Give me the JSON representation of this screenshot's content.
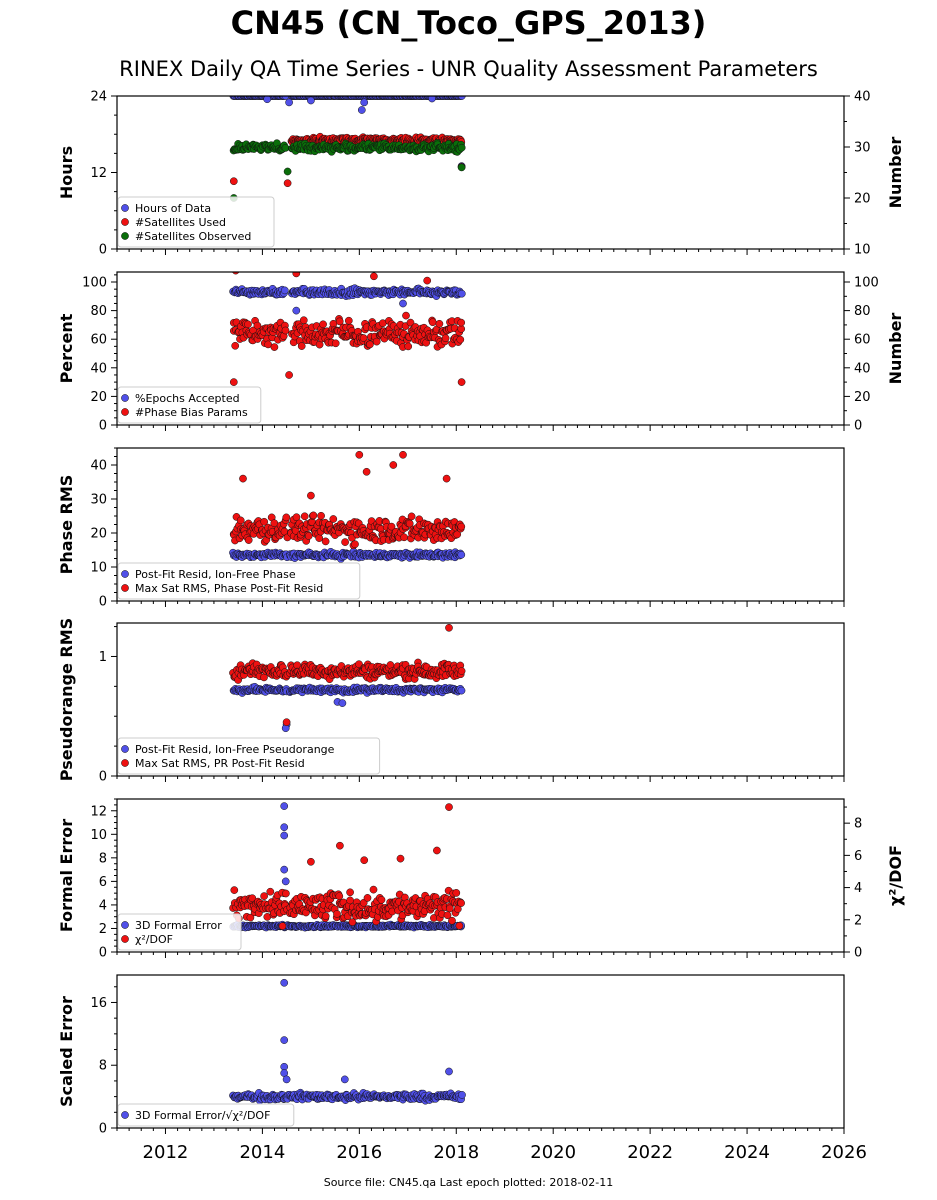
{
  "title": "CN45 (CN_Toco_GPS_2013)",
  "subtitle": "RINEX Daily QA Time Series - UNR Quality Assessment Parameters",
  "footer": "Source file: CN45.qa Last epoch plotted: 2018-02-11",
  "colors": {
    "blue": "#5050e8",
    "red": "#ee1111",
    "green": "#0a6e0a"
  },
  "chart_data": {
    "type": "scatter",
    "x_axis": {
      "range": [
        2011.0,
        2026.0
      ],
      "major_ticks": [
        2012,
        2014,
        2016,
        2018,
        2020,
        2022,
        2024,
        2026
      ],
      "grid": false
    },
    "panels": [
      {
        "ylabel": "Hours",
        "ylim": [
          0,
          24
        ],
        "yticks": [
          0,
          12,
          24
        ],
        "ylabel_right": "Number",
        "ylim_right": [
          10,
          40
        ],
        "yticks_right": [
          10,
          20,
          30,
          40
        ],
        "legend": [
          {
            "label": "Hours of Data",
            "color": "blue"
          },
          {
            "label": "#Satellites Used",
            "color": "red"
          },
          {
            "label": "#Satellites Observed",
            "color": "green"
          }
        ],
        "series": [
          {
            "name": "Hours of Data",
            "color": "blue",
            "axis": "left",
            "start": 2013.4,
            "end": 2018.11,
            "gap": [
              2014.48,
              2014.6
            ],
            "base": 24,
            "spread": 0,
            "outliers": [
              [
                2014.55,
                23.0
              ],
              [
                2015.0,
                23.3
              ],
              [
                2016.1,
                23.0
              ],
              [
                2014.1,
                23.5
              ],
              [
                2017.5,
                23.6
              ],
              [
                2016.05,
                21.8
              ],
              [
                2018.11,
                13.0
              ]
            ]
          },
          {
            "name": "#Satellites Used",
            "color": "red",
            "axis": "right",
            "start": 2014.6,
            "end": 2018.11,
            "gap": null,
            "base": 31.3,
            "spread": 0.8,
            "outliers": [
              [
                2013.41,
                23.3
              ],
              [
                2014.52,
                22.9
              ],
              [
                2018.11,
                26.1
              ]
            ]
          },
          {
            "name": "#Satellites Observed",
            "color": "green",
            "axis": "right",
            "start": 2013.4,
            "end": 2018.11,
            "gap": [
              2014.48,
              2014.6
            ],
            "base": 29.9,
            "spread": 1.1,
            "outliers": [
              [
                2013.41,
                20.0
              ],
              [
                2014.52,
                25.2
              ],
              [
                2018.11,
                26.0
              ]
            ]
          }
        ]
      },
      {
        "ylabel": "Percent",
        "ylim": [
          0,
          107
        ],
        "yticks": [
          0,
          20,
          40,
          60,
          80,
          100
        ],
        "ylabel_right": "Number",
        "ylim_right": [
          0,
          107
        ],
        "yticks_right": [
          0,
          20,
          40,
          60,
          80,
          100
        ],
        "legend": [
          {
            "label": "%Epochs Accepted",
            "color": "blue"
          },
          {
            "label": "#Phase Bias Params",
            "color": "red"
          }
        ],
        "series": [
          {
            "name": "%Epochs Accepted",
            "color": "blue",
            "axis": "left",
            "start": 2013.4,
            "end": 2018.11,
            "gap": [
              2014.48,
              2014.6
            ],
            "base": 93,
            "spread": 3.5,
            "outliers": [
              [
                2014.7,
                80
              ],
              [
                2016.9,
                85
              ]
            ]
          },
          {
            "name": "#Phase Bias Params",
            "color": "red",
            "axis": "right",
            "start": 2013.4,
            "end": 2018.11,
            "gap": [
              2014.48,
              2014.6
            ],
            "base": 64,
            "spread": 14,
            "outliers": [
              [
                2013.41,
                30
              ],
              [
                2014.55,
                35
              ],
              [
                2018.11,
                30
              ],
              [
                2013.45,
                108
              ],
              [
                2016.3,
                104
              ],
              [
                2014.7,
                106
              ],
              [
                2017.4,
                101
              ]
            ]
          }
        ]
      },
      {
        "ylabel": "Phase RMS",
        "ylim": [
          0,
          45
        ],
        "yticks": [
          0,
          10,
          20,
          30,
          40
        ],
        "legend": [
          {
            "label": "Post-Fit Resid, Ion-Free Phase",
            "color": "blue"
          },
          {
            "label": "Max Sat RMS, Phase Post-Fit Resid",
            "color": "red"
          }
        ],
        "series": [
          {
            "name": "Post-Fit Resid, Ion-Free Phase",
            "color": "blue",
            "axis": "left",
            "start": 2013.4,
            "end": 2018.11,
            "gap": [
              2014.52,
              2014.56
            ],
            "base": 13.5,
            "spread": 1.2,
            "outliers": []
          },
          {
            "name": "Max Sat RMS, Phase Post-Fit Resid",
            "color": "red",
            "axis": "left",
            "start": 2013.4,
            "end": 2018.11,
            "gap": [
              2014.52,
              2014.56
            ],
            "base": 21,
            "spread": 5.5,
            "outliers": [
              [
                2013.6,
                36
              ],
              [
                2015.0,
                31
              ],
              [
                2016.0,
                43
              ],
              [
                2016.9,
                43
              ],
              [
                2016.15,
                38
              ],
              [
                2017.8,
                36
              ],
              [
                2016.7,
                40
              ]
            ]
          }
        ]
      },
      {
        "ylabel": "Pseudorange RMS",
        "ylim": [
          0,
          1.28
        ],
        "yticks": [
          0,
          1
        ],
        "legend": [
          {
            "label": "Post-Fit Resid, Ion-Free Pseudorange",
            "color": "blue"
          },
          {
            "label": "Max Sat RMS, PR Post-Fit Resid",
            "color": "red"
          }
        ],
        "series": [
          {
            "name": "Post-Fit Resid, Ion-Free Pseudorange",
            "color": "blue",
            "axis": "left",
            "start": 2013.4,
            "end": 2018.11,
            "gap": [
              2014.52,
              2014.56
            ],
            "base": 0.72,
            "spread": 0.03,
            "outliers": [
              [
                2015.55,
                0.62
              ],
              [
                2015.65,
                0.61
              ],
              [
                2014.5,
                0.43
              ],
              [
                2014.48,
                0.4
              ]
            ]
          },
          {
            "name": "Max Sat RMS, PR Post-Fit Resid",
            "color": "red",
            "axis": "left",
            "start": 2013.4,
            "end": 2018.11,
            "gap": [
              2014.52,
              2014.56
            ],
            "base": 0.88,
            "spread": 0.09,
            "outliers": [
              [
                2017.85,
                1.24
              ],
              [
                2014.5,
                0.45
              ]
            ]
          }
        ]
      },
      {
        "ylabel": "Formal Error",
        "ylim": [
          0,
          13
        ],
        "yticks": [
          0,
          2,
          4,
          6,
          8,
          10,
          12
        ],
        "ylabel_right": "χ²/DOF",
        "ylim_right": [
          0,
          9.5
        ],
        "yticks_right": [
          0,
          2,
          4,
          6,
          8
        ],
        "legend": [
          {
            "label": "3D Formal Error",
            "color": "blue"
          },
          {
            "label": "χ²/DOF",
            "color": "red"
          }
        ],
        "series": [
          {
            "name": "3D Formal Error",
            "color": "blue",
            "axis": "left",
            "start": 2013.4,
            "end": 2018.11,
            "gap": null,
            "base": 2.2,
            "spread": 0.15,
            "outliers": [
              [
                2014.45,
                12.4
              ],
              [
                2014.45,
                10.6
              ],
              [
                2014.45,
                9.9
              ],
              [
                2014.45,
                7.0
              ],
              [
                2014.48,
                6.0
              ],
              [
                2014.45,
                5.0
              ]
            ]
          },
          {
            "name": "χ²/DOF",
            "color": "red",
            "axis": "right",
            "start": 2013.4,
            "end": 2018.11,
            "gap": [
              2014.52,
              2014.56
            ],
            "base": 2.8,
            "spread": 1.3,
            "outliers": [
              [
                2015.6,
                6.6
              ],
              [
                2016.1,
                5.7
              ],
              [
                2016.85,
                5.8
              ],
              [
                2017.85,
                9.0
              ],
              [
                2017.6,
                6.3
              ],
              [
                2015.0,
                5.6
              ]
            ]
          }
        ]
      },
      {
        "ylabel": "Scaled Error",
        "ylim": [
          0,
          19.5
        ],
        "yticks": [
          0,
          8,
          16
        ],
        "legend": [
          {
            "label": "3D Formal Error/√χ²/DOF",
            "color": "blue"
          }
        ],
        "series": [
          {
            "name": "3D Formal Error/√χ²/DOF",
            "color": "blue",
            "axis": "left",
            "start": 2013.4,
            "end": 2018.11,
            "gap": null,
            "base": 4.0,
            "spread": 0.6,
            "outliers": [
              [
                2014.45,
                18.5
              ],
              [
                2014.45,
                11.2
              ],
              [
                2014.45,
                7.8
              ],
              [
                2014.45,
                7.0
              ],
              [
                2014.5,
                6.2
              ],
              [
                2015.7,
                6.2
              ],
              [
                2017.85,
                7.2
              ]
            ]
          }
        ]
      }
    ]
  }
}
